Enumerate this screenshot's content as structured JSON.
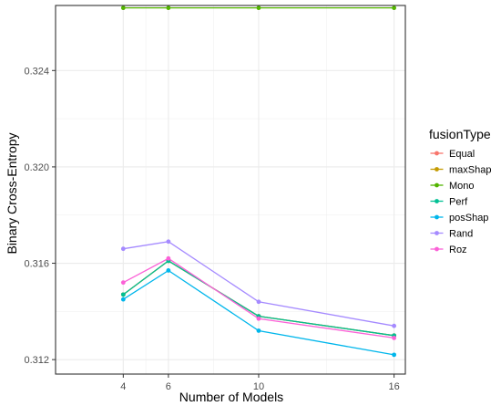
{
  "chart_data": {
    "type": "line",
    "xlabel": "Number of Models",
    "ylabel": "Binary Cross-Entropy",
    "x": [
      4,
      6,
      10,
      16
    ],
    "x_ticks": [
      "4",
      "6",
      "10",
      "16"
    ],
    "y_ticks": [
      0.312,
      0.316,
      0.32,
      0.324
    ],
    "y_tick_labels": [
      "0.312",
      "0.316",
      "0.320",
      "0.324"
    ],
    "ylim": [
      0.3114,
      0.3267
    ],
    "grid": true,
    "legend_title": "fusionType",
    "legend_position": "right",
    "series": [
      {
        "name": "Equal",
        "color": "#F8766D",
        "values": [
          0.3147,
          0.3161,
          0.3138,
          0.313
        ]
      },
      {
        "name": "maxShap",
        "color": "#C49A00",
        "values": [
          0.3147,
          0.3161,
          0.3138,
          0.313
        ]
      },
      {
        "name": "Mono",
        "color": "#53B400",
        "values": [
          0.3266,
          0.3266,
          0.3266,
          0.3266
        ]
      },
      {
        "name": "Perf",
        "color": "#00C094",
        "values": [
          0.3147,
          0.3161,
          0.3138,
          0.313
        ]
      },
      {
        "name": "posShap",
        "color": "#00B6EB",
        "values": [
          0.3145,
          0.3157,
          0.3132,
          0.3122
        ]
      },
      {
        "name": "Rand",
        "color": "#A58AFF",
        "values": [
          0.3166,
          0.3169,
          0.3144,
          0.3134
        ]
      },
      {
        "name": "Roz",
        "color": "#FB61D7",
        "values": [
          0.3152,
          0.3162,
          0.3137,
          0.3129
        ]
      }
    ]
  }
}
